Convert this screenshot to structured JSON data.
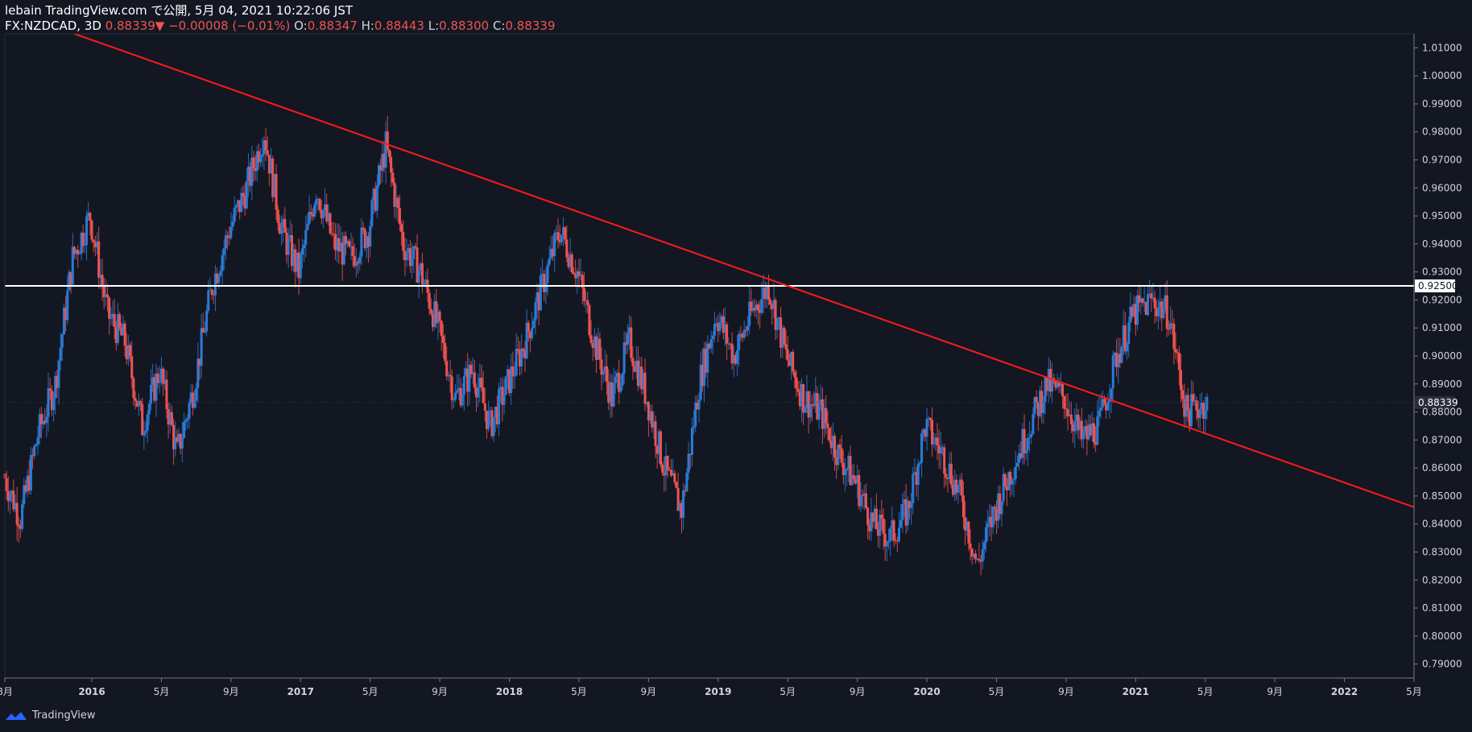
{
  "header": {
    "publisher": "lebain TradingView.com で公開, 5月 04, 2021 10:22:06 JST",
    "symbol": "FX:NZDCAD, 3D",
    "last": "0.88339",
    "change_arrow": "▼",
    "change": "−0.00008 (−0.01%)",
    "o_label": "O:",
    "o_value": "0.88347",
    "h_label": "H:",
    "h_value": "0.88443",
    "l_label": "L:",
    "l_value": "0.88300",
    "c_label": "C:",
    "c_value": "0.88339"
  },
  "footer": {
    "brand": "TradingView",
    "logo_icon": "tradingview-logo-icon"
  },
  "colors": {
    "background": "#131722",
    "up": "#2b7bd6",
    "down": "#ef5350",
    "trendline": "#ff1a1a",
    "hline": "#ffffff",
    "axis_text": "#d1d4dc"
  },
  "chart_data": {
    "type": "candlestick",
    "title": "FX:NZDCAD, 3D",
    "ylim": [
      0.785,
      1.015
    ],
    "y_ticks": [
      "1.01000",
      "1.00000",
      "0.99000",
      "0.98000",
      "0.97000",
      "0.96000",
      "0.95000",
      "0.94000",
      "0.93000",
      "0.92000",
      "0.91000",
      "0.90000",
      "0.89000",
      "0.88000",
      "0.87000",
      "0.86000",
      "0.85000",
      "0.84000",
      "0.83000",
      "0.82000",
      "0.81000",
      "0.80000",
      "0.79000"
    ],
    "x_range": [
      "2015-08",
      "2022-05"
    ],
    "x_ticks": [
      {
        "label": "8月",
        "date": "2015-08"
      },
      {
        "label": "2016",
        "date": "2016-01"
      },
      {
        "label": "5月",
        "date": "2016-05"
      },
      {
        "label": "9月",
        "date": "2016-09"
      },
      {
        "label": "2017",
        "date": "2017-01"
      },
      {
        "label": "5月",
        "date": "2017-05"
      },
      {
        "label": "9月",
        "date": "2017-09"
      },
      {
        "label": "2018",
        "date": "2018-01"
      },
      {
        "label": "5月",
        "date": "2018-05"
      },
      {
        "label": "9月",
        "date": "2018-09"
      },
      {
        "label": "2019",
        "date": "2019-01"
      },
      {
        "label": "5月",
        "date": "2019-05"
      },
      {
        "label": "9月",
        "date": "2019-09"
      },
      {
        "label": "2020",
        "date": "2020-01"
      },
      {
        "label": "5月",
        "date": "2020-05"
      },
      {
        "label": "9月",
        "date": "2020-09"
      },
      {
        "label": "2021",
        "date": "2021-01"
      },
      {
        "label": "5月",
        "date": "2021-05"
      },
      {
        "label": "9月",
        "date": "2021-09"
      },
      {
        "label": "2022",
        "date": "2022-01"
      },
      {
        "label": "5月",
        "date": "2022-05"
      }
    ],
    "price_path": [
      [
        "2015-08",
        0.858
      ],
      [
        "2015-09",
        0.842
      ],
      [
        "2015-10",
        0.872
      ],
      [
        "2015-11",
        0.89
      ],
      [
        "2015-12",
        0.935
      ],
      [
        "2016-01",
        0.95
      ],
      [
        "2016-02",
        0.915
      ],
      [
        "2016-03",
        0.905
      ],
      [
        "2016-04",
        0.875
      ],
      [
        "2016-05",
        0.895
      ],
      [
        "2016-06",
        0.865
      ],
      [
        "2016-07",
        0.89
      ],
      [
        "2016-08",
        0.925
      ],
      [
        "2016-09",
        0.945
      ],
      [
        "2016-10",
        0.96
      ],
      [
        "2016-11",
        0.98
      ],
      [
        "2016-12",
        0.945
      ],
      [
        "2017-01",
        0.93
      ],
      [
        "2017-02",
        0.96
      ],
      [
        "2017-03",
        0.94
      ],
      [
        "2017-04",
        0.935
      ],
      [
        "2017-05",
        0.945
      ],
      [
        "2017-06",
        0.975
      ],
      [
        "2017-07",
        0.94
      ],
      [
        "2017-08",
        0.93
      ],
      [
        "2017-09",
        0.91
      ],
      [
        "2017-10",
        0.885
      ],
      [
        "2017-11",
        0.895
      ],
      [
        "2017-12",
        0.875
      ],
      [
        "2018-01",
        0.89
      ],
      [
        "2018-02",
        0.905
      ],
      [
        "2018-03",
        0.925
      ],
      [
        "2018-04",
        0.945
      ],
      [
        "2018-05",
        0.93
      ],
      [
        "2018-06",
        0.905
      ],
      [
        "2018-07",
        0.885
      ],
      [
        "2018-08",
        0.905
      ],
      [
        "2018-09",
        0.885
      ],
      [
        "2018-10",
        0.86
      ],
      [
        "2018-11",
        0.845
      ],
      [
        "2018-12",
        0.89
      ],
      [
        "2019-01",
        0.915
      ],
      [
        "2019-02",
        0.9
      ],
      [
        "2019-03",
        0.915
      ],
      [
        "2019-04",
        0.925
      ],
      [
        "2019-05",
        0.9
      ],
      [
        "2019-06",
        0.885
      ],
      [
        "2019-07",
        0.88
      ],
      [
        "2019-08",
        0.865
      ],
      [
        "2019-09",
        0.855
      ],
      [
        "2019-10",
        0.84
      ],
      [
        "2019-11",
        0.835
      ],
      [
        "2019-12",
        0.845
      ],
      [
        "2020-01",
        0.875
      ],
      [
        "2020-02",
        0.865
      ],
      [
        "2020-03",
        0.85
      ],
      [
        "2020-04",
        0.825
      ],
      [
        "2020-05",
        0.845
      ],
      [
        "2020-06",
        0.86
      ],
      [
        "2020-07",
        0.875
      ],
      [
        "2020-08",
        0.89
      ],
      [
        "2020-09",
        0.885
      ],
      [
        "2020-10",
        0.87
      ],
      [
        "2020-11",
        0.875
      ],
      [
        "2020-12",
        0.9
      ],
      [
        "2021-01",
        0.915
      ],
      [
        "2021-02",
        0.92
      ],
      [
        "2021-03",
        0.915
      ],
      [
        "2021-04",
        0.88
      ],
      [
        "2021-05",
        0.883
      ]
    ],
    "horizontal_line": {
      "price": 0.925,
      "label": "0.92500"
    },
    "last_price": {
      "price": 0.88339,
      "label": "0.88339"
    },
    "trendline": {
      "start": [
        "2015-12",
        1.015
      ],
      "end": [
        "2022-05",
        0.846
      ]
    }
  }
}
